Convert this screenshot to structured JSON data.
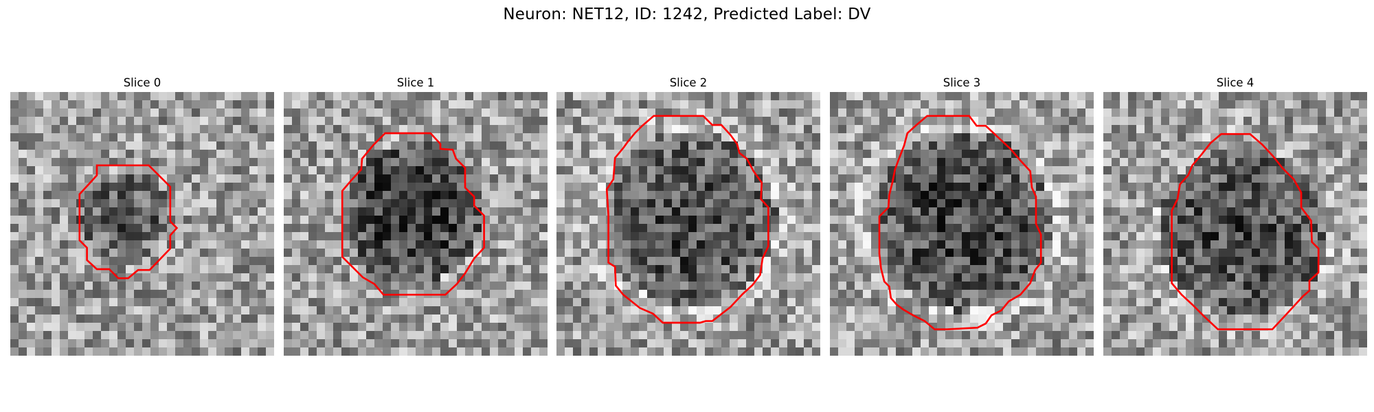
{
  "figure": {
    "title": "Neuron: NET12, ID: 1242, Predicted Label: DV"
  },
  "panels": [
    {
      "title": "Slice 0",
      "contour_color": "#ff0000",
      "grid_size": 32
    },
    {
      "title": "Slice 1",
      "contour_color": "#ff0000",
      "grid_size": 32
    },
    {
      "title": "Slice 2",
      "contour_color": "#ff0000",
      "grid_size": 32
    },
    {
      "title": "Slice 3",
      "contour_color": "#ff0000",
      "grid_size": 32
    },
    {
      "title": "Slice 4",
      "contour_color": "#ff0000",
      "grid_size": 32
    }
  ]
}
